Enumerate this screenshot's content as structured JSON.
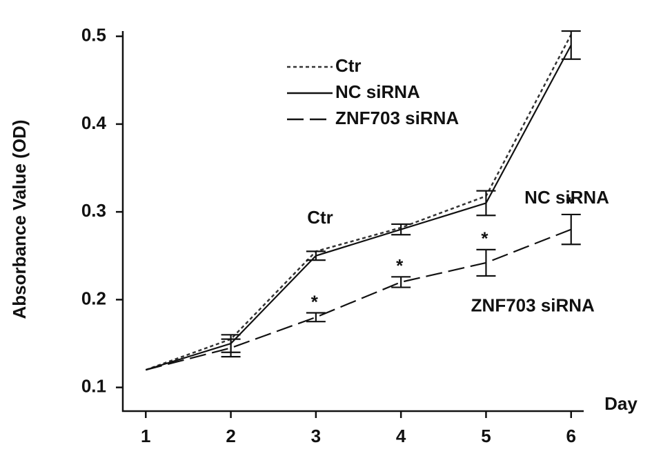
{
  "chart_data": {
    "type": "line",
    "x_label": "Day",
    "y_label": "Absorbance Value (OD)",
    "x": [
      1,
      2,
      3,
      4,
      5,
      6
    ],
    "series": [
      {
        "name": "Ctr",
        "color": "#333333",
        "dash": "dotted",
        "values": [
          0.12,
          0.155,
          0.255,
          0.282,
          0.318,
          0.502
        ]
      },
      {
        "name": "NC siRNA",
        "color": "#111111",
        "dash": "solid",
        "values": [
          0.12,
          0.15,
          0.25,
          0.28,
          0.31,
          0.49
        ],
        "errors": [
          null,
          0.01,
          0.005,
          0.006,
          0.014,
          0.016
        ]
      },
      {
        "name": "ZNF703 siRNA",
        "color": "#111111",
        "dash": "dashed",
        "values": [
          0.12,
          0.145,
          0.18,
          0.22,
          0.242,
          0.28
        ],
        "errors": [
          null,
          0.01,
          0.005,
          0.006,
          0.015,
          0.017
        ],
        "markers": [
          null,
          null,
          "*",
          "*",
          "*",
          "*"
        ]
      }
    ],
    "annotations": [
      {
        "text": "Ctr",
        "x": 3.05,
        "y": 0.292
      },
      {
        "text": "NC siRNA",
        "x": 5.95,
        "y": 0.315
      },
      {
        "text": "ZNF703 siRNA",
        "x": 5.55,
        "y": 0.192
      }
    ],
    "xlim": [
      0.73,
      6.14
    ],
    "xticks": [
      1,
      2,
      3,
      4,
      5,
      6
    ],
    "ylim": [
      0.073,
      0.506
    ],
    "yticks": [
      0.1,
      0.2,
      0.3,
      0.4,
      0.5
    ],
    "legend": "upper-left",
    "grid": false
  }
}
